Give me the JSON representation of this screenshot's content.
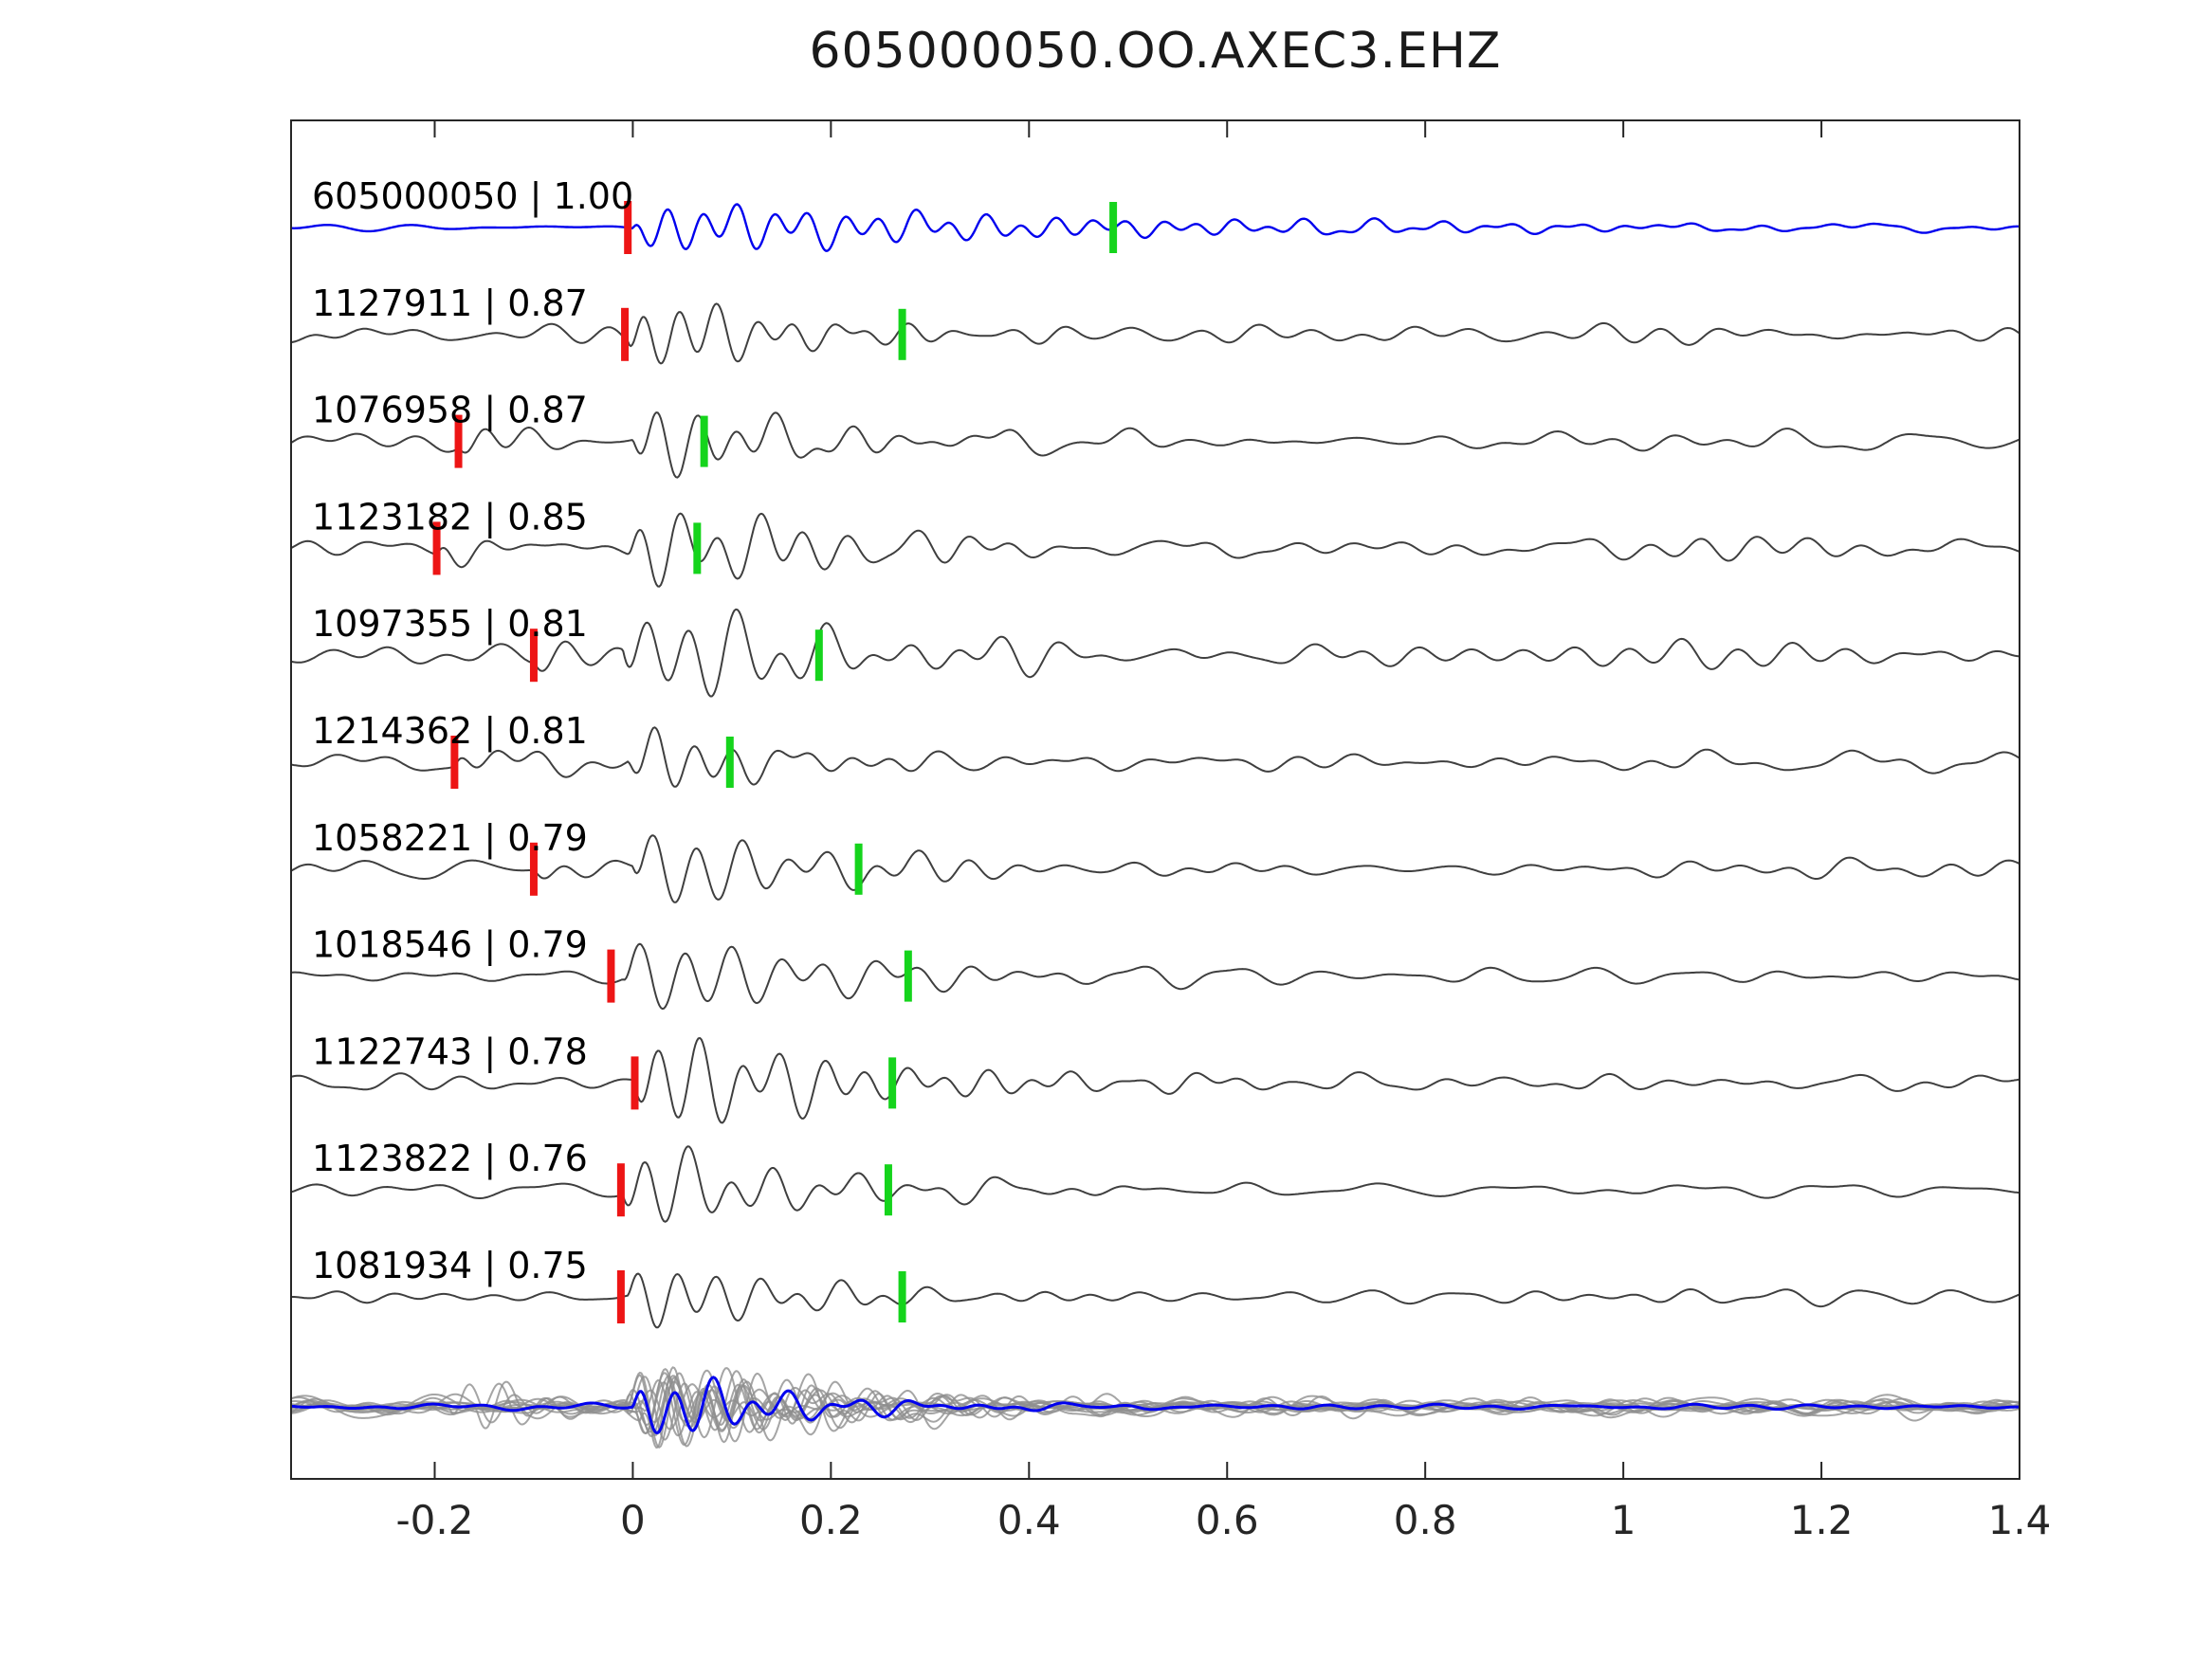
{
  "chart_data": {
    "type": "line",
    "title": "605000050.OO.AXEC3.EHZ",
    "xlabel": "",
    "ylabel": "",
    "xlim": [
      -0.345,
      1.4
    ],
    "xticks": [
      -0.2,
      0,
      0.2,
      0.4,
      0.6,
      0.8,
      1,
      1.2,
      1.4
    ],
    "grid": false,
    "legend": "none",
    "label_format": "{id} | {cc}",
    "colors": {
      "trace": "#3f3f3f",
      "template": "#0000ee",
      "red_pick": "#ed1515",
      "green_pick": "#15d41c",
      "overlay": "#8e8e8e",
      "axis": "#262626",
      "text": "#000000"
    },
    "traces": [
      {
        "id": "605000050",
        "cc": "1.00",
        "is_template": true,
        "red_pick": -0.005,
        "green_pick": 0.485,
        "wave": {
          "amp": 22,
          "freq": 28,
          "decay": 0.4,
          "noise": 3.5,
          "onset": 0,
          "pre": 0,
          "seed": 101
        }
      },
      {
        "id": "1127911",
        "cc": "0.87",
        "is_template": false,
        "red_pick": -0.008,
        "green_pick": 0.272,
        "wave": {
          "amp": 46,
          "freq": 26,
          "decay": 0.12,
          "noise": 8,
          "onset": -0.005,
          "pre": 0,
          "seed": 102
        }
      },
      {
        "id": "1076958",
        "cc": "0.87",
        "is_template": false,
        "red_pick": -0.176,
        "green_pick": 0.072,
        "wave": {
          "amp": 40,
          "freq": 25,
          "decay": 0.13,
          "noise": 9,
          "onset": 0,
          "pre": 0.5,
          "seed": 103
        }
      },
      {
        "id": "1123182",
        "cc": "0.85",
        "is_template": false,
        "red_pick": -0.198,
        "green_pick": 0.065,
        "wave": {
          "amp": 46,
          "freq": 24,
          "decay": 0.15,
          "noise": 10,
          "onset": -0.005,
          "pre": 0.5,
          "seed": 104
        }
      },
      {
        "id": "1097355",
        "cc": "0.81",
        "is_template": false,
        "red_pick": -0.1,
        "green_pick": 0.188,
        "wave": {
          "amp": 52,
          "freq": 22,
          "decay": 0.18,
          "noise": 10,
          "onset": -0.01,
          "pre": 0.4,
          "seed": 105
        }
      },
      {
        "id": "1214362",
        "cc": "0.81",
        "is_template": false,
        "red_pick": -0.18,
        "green_pick": 0.098,
        "wave": {
          "amp": 38,
          "freq": 25,
          "decay": 0.11,
          "noise": 10,
          "onset": -0.005,
          "pre": 0.5,
          "seed": 106
        }
      },
      {
        "id": "1058221",
        "cc": "0.79",
        "is_template": false,
        "red_pick": -0.1,
        "green_pick": 0.228,
        "wave": {
          "amp": 48,
          "freq": 22,
          "decay": 0.16,
          "noise": 9,
          "onset": 0,
          "pre": 0.35,
          "seed": 107
        }
      },
      {
        "id": "1018546",
        "cc": "0.79",
        "is_template": false,
        "red_pick": -0.022,
        "green_pick": 0.278,
        "wave": {
          "amp": 46,
          "freq": 21,
          "decay": 0.18,
          "noise": 8,
          "onset": -0.01,
          "pre": 0,
          "seed": 108
        }
      },
      {
        "id": "1122743",
        "cc": "0.78",
        "is_template": false,
        "red_pick": 0.002,
        "green_pick": 0.262,
        "wave": {
          "amp": 50,
          "freq": 24,
          "decay": 0.2,
          "noise": 8,
          "onset": 0,
          "pre": 0,
          "seed": 109
        }
      },
      {
        "id": "1123822",
        "cc": "0.76",
        "is_template": false,
        "red_pick": -0.012,
        "green_pick": 0.258,
        "wave": {
          "amp": 44,
          "freq": 23,
          "decay": 0.15,
          "noise": 7,
          "onset": -0.01,
          "pre": 0,
          "seed": 110
        }
      },
      {
        "id": "1081934",
        "cc": "0.75",
        "is_template": false,
        "red_pick": -0.012,
        "green_pick": 0.272,
        "wave": {
          "amp": 42,
          "freq": 24,
          "decay": 0.13,
          "noise": 6,
          "onset": -0.005,
          "pre": 0,
          "seed": 111
        }
      }
    ],
    "overlay": {
      "count": 12,
      "amp": 38,
      "freq": 26,
      "decay": 0.11,
      "noise": 5,
      "seed": 4242,
      "pre_pick": -0.17
    }
  }
}
